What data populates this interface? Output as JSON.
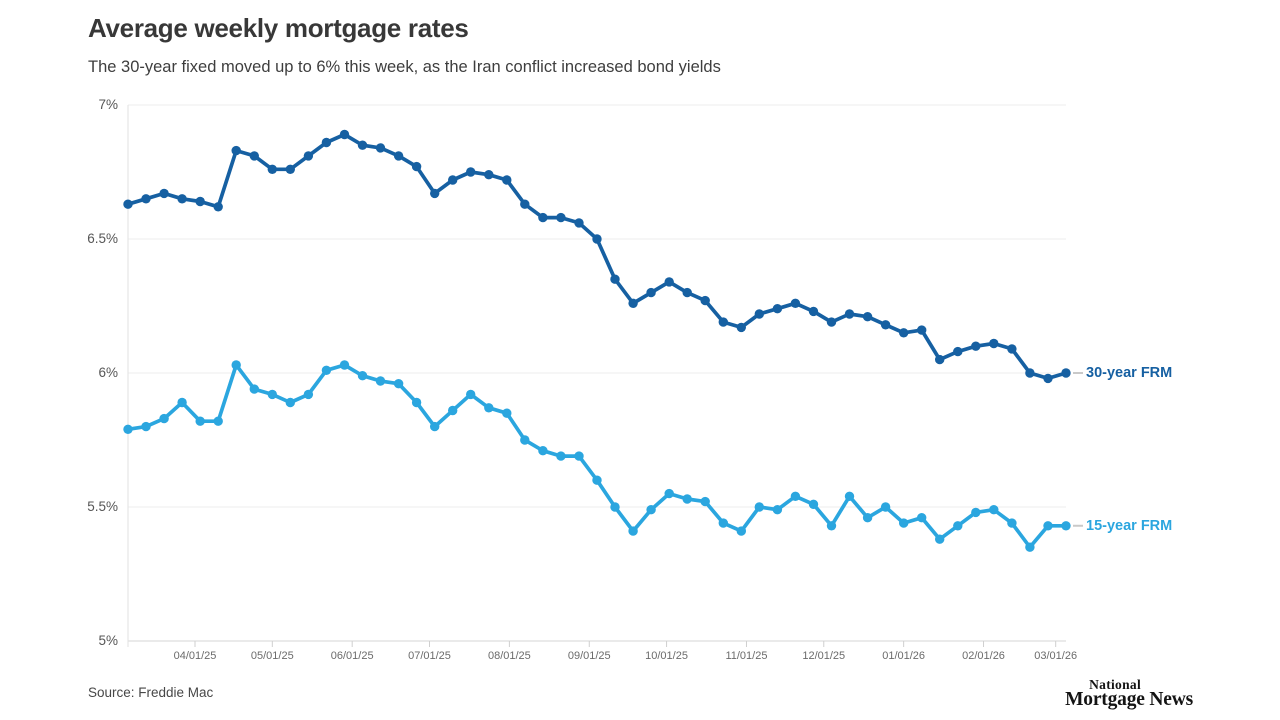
{
  "header": {
    "title": "Average weekly mortgage rates",
    "subtitle": "The 30-year fixed moved up to 6% this week, as the Iran conflict increased bond yields"
  },
  "footer": {
    "source": "Source: Freddie Mac",
    "logo": {
      "line1": "National",
      "line2": "Mortgage News"
    }
  },
  "chart_data": {
    "type": "line",
    "title": "Average weekly mortgage rates",
    "subtitle": "The 30-year fixed moved up to 6% this week, as the Iran conflict increased bond yields",
    "xlabel": "",
    "ylabel": "",
    "ylim": [
      5,
      7
    ],
    "grid": "horizontal",
    "legend_position": "right-of-line-end",
    "legend_dash_color": "#c9c9c9",
    "x": [
      "2025-03-06",
      "2025-03-13",
      "2025-03-20",
      "2025-03-27",
      "2025-04-03",
      "2025-04-10",
      "2025-04-17",
      "2025-04-24",
      "2025-05-01",
      "2025-05-08",
      "2025-05-15",
      "2025-05-22",
      "2025-05-29",
      "2025-06-05",
      "2025-06-12",
      "2025-06-19",
      "2025-06-26",
      "2025-07-03",
      "2025-07-10",
      "2025-07-17",
      "2025-07-24",
      "2025-07-31",
      "2025-08-07",
      "2025-08-14",
      "2025-08-21",
      "2025-08-28",
      "2025-09-04",
      "2025-09-11",
      "2025-09-18",
      "2025-09-25",
      "2025-10-02",
      "2025-10-09",
      "2025-10-16",
      "2025-10-23",
      "2025-10-30",
      "2025-11-06",
      "2025-11-13",
      "2025-11-20",
      "2025-11-27",
      "2025-12-04",
      "2025-12-11",
      "2025-12-18",
      "2025-12-25",
      "2026-01-01",
      "2026-01-08",
      "2026-01-15",
      "2026-01-22",
      "2026-01-29",
      "2026-02-05",
      "2026-02-12",
      "2026-02-19",
      "2026-02-26",
      "2026-03-05"
    ],
    "series": [
      {
        "name": "30-year FRM",
        "color": "#1660a2",
        "values": [
          6.63,
          6.65,
          6.67,
          6.65,
          6.64,
          6.62,
          6.83,
          6.81,
          6.76,
          6.76,
          6.81,
          6.86,
          6.89,
          6.85,
          6.84,
          6.81,
          6.77,
          6.67,
          6.72,
          6.75,
          6.74,
          6.72,
          6.63,
          6.58,
          6.58,
          6.56,
          6.5,
          6.35,
          6.26,
          6.3,
          6.34,
          6.3,
          6.27,
          6.19,
          6.17,
          6.22,
          6.24,
          6.26,
          6.23,
          6.19,
          6.22,
          6.21,
          6.18,
          6.15,
          6.16,
          6.05,
          6.08,
          6.1,
          6.11,
          6.09,
          6.0,
          5.98,
          6.0
        ]
      },
      {
        "name": "15-year FRM",
        "color": "#2ba6df",
        "values": [
          5.79,
          5.8,
          5.83,
          5.89,
          5.82,
          5.82,
          6.03,
          5.94,
          5.92,
          5.89,
          5.92,
          6.01,
          6.03,
          5.99,
          5.97,
          5.96,
          5.89,
          5.8,
          5.86,
          5.92,
          5.87,
          5.85,
          5.75,
          5.71,
          5.69,
          5.69,
          5.6,
          5.5,
          5.41,
          5.49,
          5.55,
          5.53,
          5.52,
          5.44,
          5.41,
          5.5,
          5.49,
          5.54,
          5.51,
          5.43,
          5.54,
          5.46,
          5.5,
          5.44,
          5.46,
          5.38,
          5.43,
          5.48,
          5.49,
          5.44,
          5.35,
          5.43,
          5.43
        ]
      }
    ],
    "yticks": [
      {
        "value": 7,
        "label": "7%"
      },
      {
        "value": 6.5,
        "label": "6.5%"
      },
      {
        "value": 6,
        "label": "6%"
      },
      {
        "value": 5.5,
        "label": "5.5%"
      },
      {
        "value": 5,
        "label": "5%"
      }
    ],
    "xticks": [
      {
        "date": "2025-04-01",
        "label": "04/01/25"
      },
      {
        "date": "2025-05-01",
        "label": "05/01/25"
      },
      {
        "date": "2025-06-01",
        "label": "06/01/25"
      },
      {
        "date": "2025-07-01",
        "label": "07/01/25"
      },
      {
        "date": "2025-08-01",
        "label": "08/01/25"
      },
      {
        "date": "2025-09-01",
        "label": "09/01/25"
      },
      {
        "date": "2025-10-01",
        "label": "10/01/25"
      },
      {
        "date": "2025-11-01",
        "label": "11/01/25"
      },
      {
        "date": "2025-12-01",
        "label": "12/01/25"
      },
      {
        "date": "2026-01-01",
        "label": "01/01/26"
      },
      {
        "date": "2026-02-01",
        "label": "02/01/26"
      },
      {
        "date": "2026-03-01",
        "label": "03/01/26"
      }
    ]
  }
}
